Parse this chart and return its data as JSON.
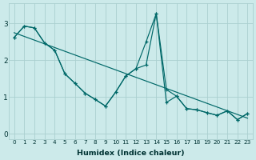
{
  "xlabel": "Humidex (Indice chaleur)",
  "ylabel": "",
  "background_color": "#cceaea",
  "grid_color": "#aacfcf",
  "line_color": "#006868",
  "xlim": [
    -0.5,
    23.5
  ],
  "ylim": [
    -0.15,
    3.55
  ],
  "xticks": [
    0,
    1,
    2,
    3,
    4,
    5,
    6,
    7,
    8,
    9,
    10,
    11,
    12,
    13,
    14,
    15,
    16,
    17,
    18,
    19,
    20,
    21,
    22,
    23
  ],
  "yticks": [
    0,
    1,
    2,
    3
  ],
  "series1_y": [
    2.62,
    2.93,
    2.88,
    2.47,
    2.27,
    1.63,
    1.37,
    1.1,
    0.93,
    0.75,
    1.13,
    1.57,
    1.77,
    1.87,
    3.27,
    1.2,
    1.02,
    0.68,
    0.65,
    0.57,
    0.5,
    0.62,
    0.38,
    0.55
  ],
  "series2_y": [
    2.62,
    2.93,
    2.88,
    2.47,
    2.27,
    1.63,
    1.37,
    1.1,
    0.93,
    0.75,
    1.13,
    1.57,
    1.77,
    2.5,
    3.27,
    0.85,
    1.02,
    0.68,
    0.65,
    0.57,
    0.5,
    0.62,
    0.38,
    0.55
  ],
  "trend_x": [
    0,
    23
  ],
  "trend_y": [
    2.75,
    0.42
  ]
}
